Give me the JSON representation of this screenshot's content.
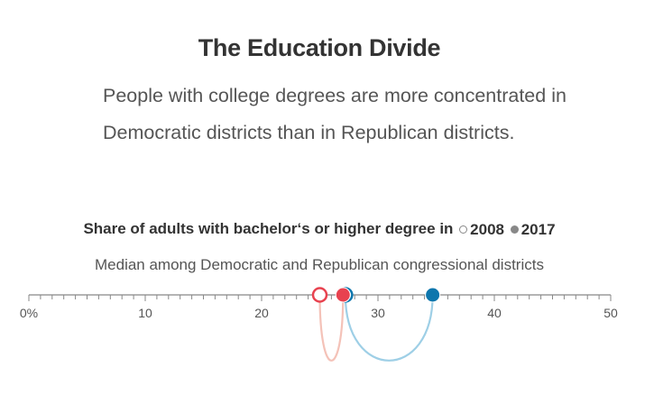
{
  "title": "The Education Divide",
  "subtitle": "People with college degrees are more concentrated in Democratic districts than in Republican districts.",
  "chart_header": "Share of adults with bachelor‘s or higher degree in",
  "legend": [
    {
      "label": "2008",
      "style": "open"
    },
    {
      "label": "2017",
      "style": "filled"
    }
  ],
  "chart_note": "Median among Democratic and Republican congressional districts",
  "chart_data": {
    "type": "dot-arc",
    "title": "The Education Divide",
    "xlabel": "Share of adults with bachelor‘s or higher degree (%)",
    "xlim": [
      0,
      50
    ],
    "ticks": [
      0,
      10,
      20,
      30,
      40,
      50
    ],
    "tick_labels": [
      "0%",
      "10",
      "20",
      "30",
      "40",
      "50"
    ],
    "minor_tick_step": 1,
    "series": [
      {
        "name": "Republican districts",
        "color": "#e8424f",
        "light_color": "#f4c2b8",
        "value_2008": 25.0,
        "value_2017": 27.0
      },
      {
        "name": "Democratic districts",
        "color": "#0d76ad",
        "light_color": "#9ecfe6",
        "value_2008": 27.2,
        "value_2017": 34.7
      }
    ]
  }
}
